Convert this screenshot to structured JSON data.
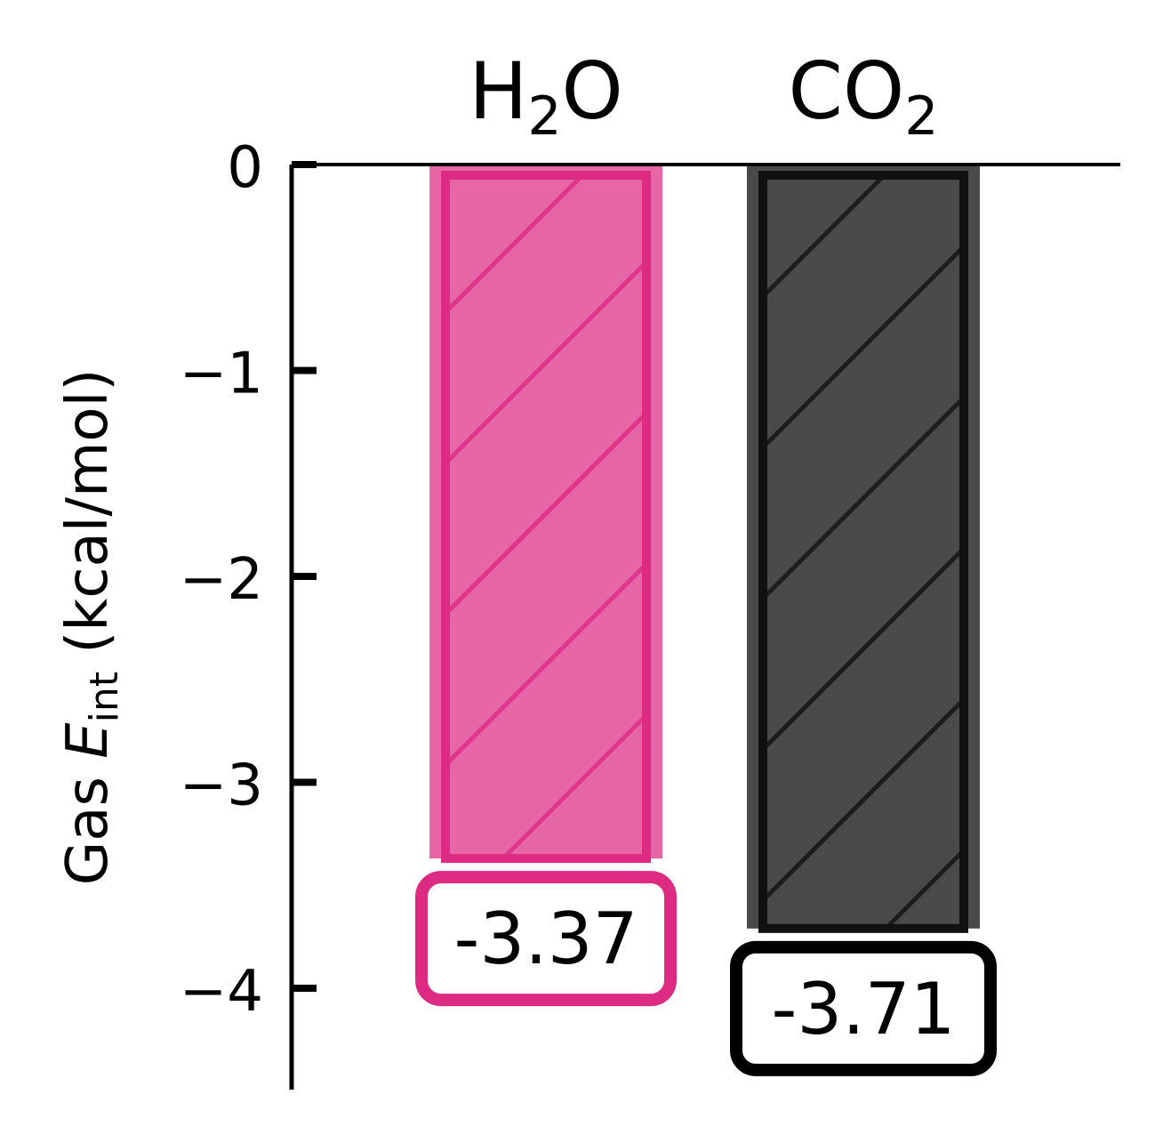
{
  "chart_data": {
    "type": "bar",
    "categories": [
      {
        "base": "H",
        "sub": "2",
        "tail": "O"
      },
      {
        "base": "CO",
        "sub": "2",
        "tail": ""
      }
    ],
    "values": [
      -3.37,
      -3.71
    ],
    "data_labels": [
      "-3.37",
      "-3.71"
    ],
    "bar_colors": [
      {
        "fill": "#e766a5",
        "edge": "#dd2b84",
        "hatch": "#dd2b84",
        "label_border": "#dd2b84"
      },
      {
        "fill": "#4a4a4a",
        "edge": "#111111",
        "hatch": "#111111",
        "label_border": "#000000"
      }
    ],
    "hatch": "diagonal",
    "ylabel": {
      "prefix": "Gas ",
      "symbol": "E",
      "subscript": "int",
      "suffix": " (kcal/mol)"
    },
    "yticks": [
      0,
      -1,
      -2,
      -3,
      -4
    ],
    "ytick_labels": [
      "0",
      "−1",
      "−2",
      "−3",
      "−4"
    ],
    "ylim": [
      -4.5,
      0
    ],
    "category_axis_position": "top",
    "grid": false,
    "legend": "none"
  }
}
